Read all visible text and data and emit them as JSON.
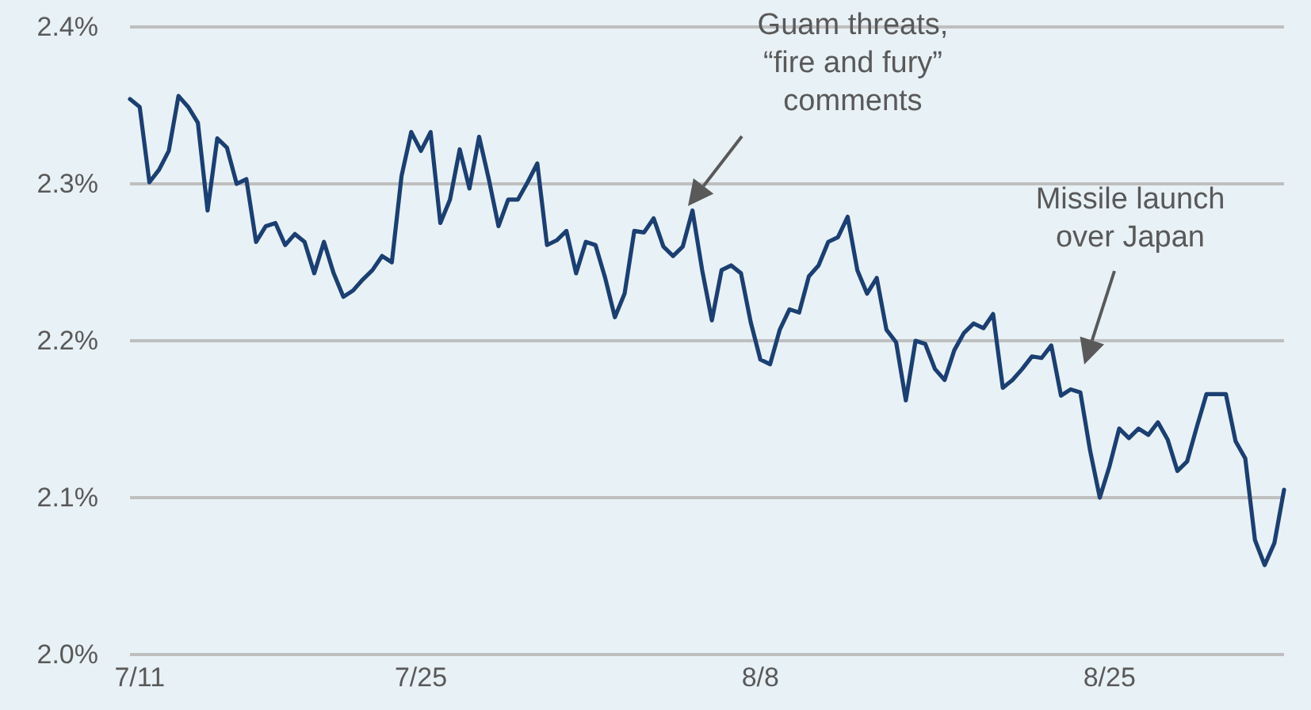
{
  "chart_data": {
    "type": "line",
    "categories": [
      null,
      "7/11",
      null,
      null,
      null,
      null,
      null,
      null,
      null,
      null,
      null,
      null,
      null,
      null,
      null,
      null,
      null,
      null,
      null,
      null,
      null,
      null,
      null,
      null,
      null,
      null,
      null,
      null,
      null,
      null,
      "7/25",
      null,
      null,
      null,
      null,
      null,
      null,
      null,
      null,
      null,
      null,
      null,
      null,
      null,
      null,
      null,
      null,
      null,
      null,
      null,
      null,
      null,
      null,
      null,
      null,
      null,
      null,
      null,
      null,
      null,
      null,
      null,
      null,
      null,
      null,
      "8/8",
      null,
      null,
      null,
      null,
      null,
      null,
      null,
      null,
      null,
      null,
      null,
      null,
      null,
      null,
      null,
      null,
      null,
      null,
      null,
      null,
      null,
      null,
      null,
      null,
      null,
      null,
      null,
      null,
      null,
      null,
      null,
      null,
      null,
      null,
      null,
      "8/25",
      null,
      null,
      null,
      null,
      null,
      null,
      null,
      null,
      null,
      null,
      null,
      null,
      null,
      null,
      null,
      null,
      null,
      null
    ],
    "series": [
      {
        "color": "#1b3f72",
        "values": [
          2.354,
          2.349,
          2.301,
          2.309,
          2.321,
          2.356,
          2.349,
          2.339,
          2.283,
          2.329,
          2.323,
          2.3,
          2.303,
          2.263,
          2.273,
          2.275,
          2.261,
          2.268,
          2.263,
          2.243,
          2.263,
          2.243,
          2.228,
          2.232,
          2.239,
          2.245,
          2.254,
          2.25,
          2.305,
          2.333,
          2.321,
          2.333,
          2.275,
          2.29,
          2.322,
          2.297,
          2.33,
          2.303,
          2.273,
          2.29,
          2.29,
          2.301,
          2.313,
          2.261,
          2.264,
          2.27,
          2.243,
          2.263,
          2.261,
          2.24,
          2.215,
          2.23,
          2.27,
          2.269,
          2.278,
          2.26,
          2.254,
          2.26,
          2.283,
          2.245,
          2.213,
          2.245,
          2.248,
          2.243,
          2.212,
          2.188,
          2.185,
          2.207,
          2.22,
          2.218,
          2.241,
          2.248,
          2.263,
          2.266,
          2.279,
          2.245,
          2.23,
          2.24,
          2.207,
          2.199,
          2.162,
          2.2,
          2.198,
          2.182,
          2.175,
          2.194,
          2.205,
          2.211,
          2.208,
          2.217,
          2.17,
          2.175,
          2.182,
          2.19,
          2.189,
          2.197,
          2.165,
          2.169,
          2.167,
          2.13,
          2.1,
          2.12,
          2.144,
          2.138,
          2.144,
          2.14,
          2.148,
          2.137,
          2.117,
          2.123,
          2.145,
          2.166,
          2.166,
          2.166,
          2.136,
          2.125,
          2.073,
          2.057,
          2.071,
          2.105
        ]
      }
    ],
    "ylim": [
      2.0,
      2.4
    ],
    "yticks": [
      {
        "value": 2.0,
        "label": "2.0%"
      },
      {
        "value": 2.1,
        "label": "2.1%"
      },
      {
        "value": 2.2,
        "label": "2.2%"
      },
      {
        "value": 2.3,
        "label": "2.3%"
      },
      {
        "value": 2.4,
        "label": "2.4%"
      }
    ],
    "grid": "y",
    "marker": "none",
    "line_style": "solid",
    "annotations": [
      "Guam threats,\n“fire and fury”\ncomments",
      "Missile launch\nover Japan"
    ]
  }
}
